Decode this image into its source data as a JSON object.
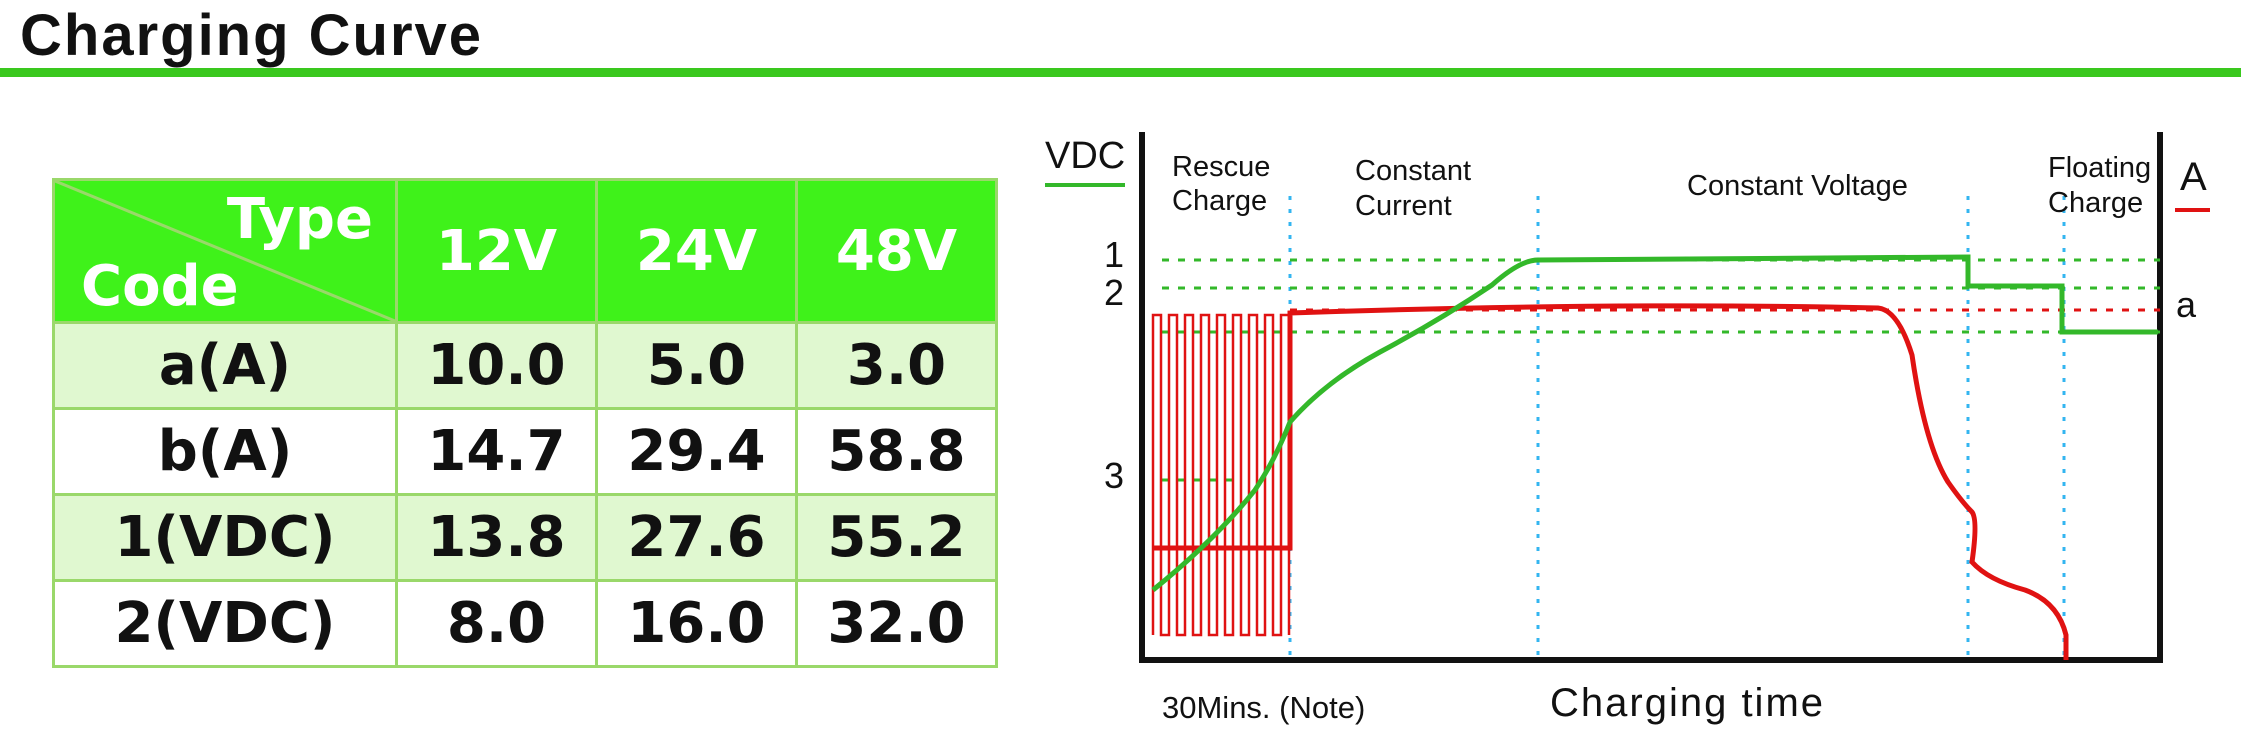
{
  "page": {
    "title": "Charging Curve",
    "accent_color": "#3ac81e"
  },
  "table": {
    "corner_top": "Type",
    "corner_bottom": "Code",
    "columns": [
      "12V",
      "24V",
      "48V"
    ],
    "rows": [
      {
        "code": "a(A)",
        "values": [
          "10.0",
          "5.0",
          "3.0"
        ]
      },
      {
        "code": "b(A)",
        "values": [
          "14.7",
          "29.4",
          "58.8"
        ]
      },
      {
        "code": "1(VDC)",
        "values": [
          "13.8",
          "27.6",
          "55.2"
        ]
      },
      {
        "code": "2(VDC)",
        "values": [
          "8.0",
          "16.0",
          "32.0"
        ]
      }
    ],
    "header_color": "#3ff21a",
    "stripe_color": "#e0f8d0"
  },
  "chart": {
    "left_axis_label": "VDC",
    "right_axis_label": "A",
    "voltage_color": "#33b82a",
    "current_color": "#e01212",
    "phase_line_color": "#33b5f0",
    "phases": [
      "Rescue Charge",
      "Constant Current",
      "Constant Voltage",
      "Floating Charge"
    ],
    "left_ticks": [
      "1",
      "2",
      "3"
    ],
    "right_ticks": [
      "a"
    ],
    "bottom_note": "30Mins. (Note)",
    "x_axis_label": "Charging time"
  }
}
